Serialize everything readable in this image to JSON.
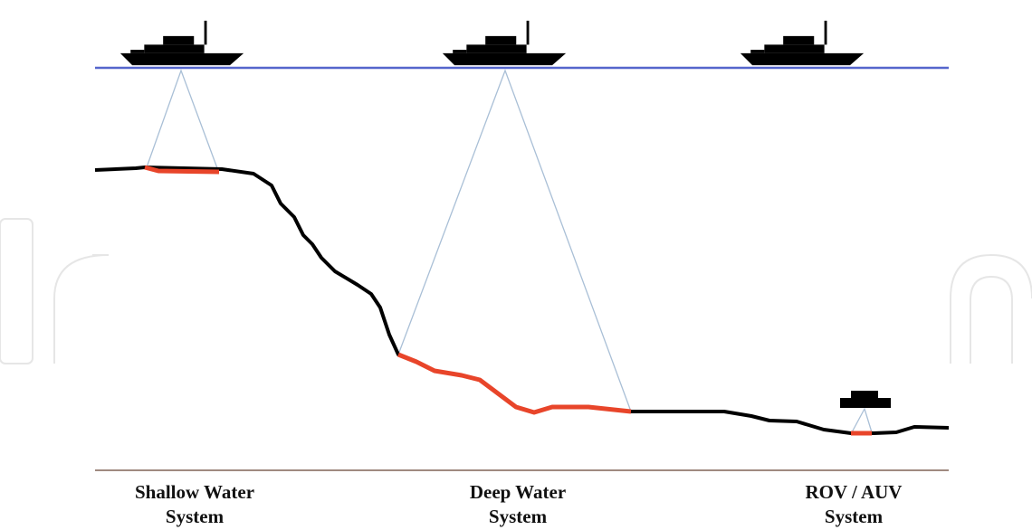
{
  "systems": [
    {
      "line1": "Shallow Water",
      "line2": "System"
    },
    {
      "line1": "Deep Water",
      "line2": "System"
    },
    {
      "line1": "ROV / AUV",
      "line2": "System"
    }
  ]
}
